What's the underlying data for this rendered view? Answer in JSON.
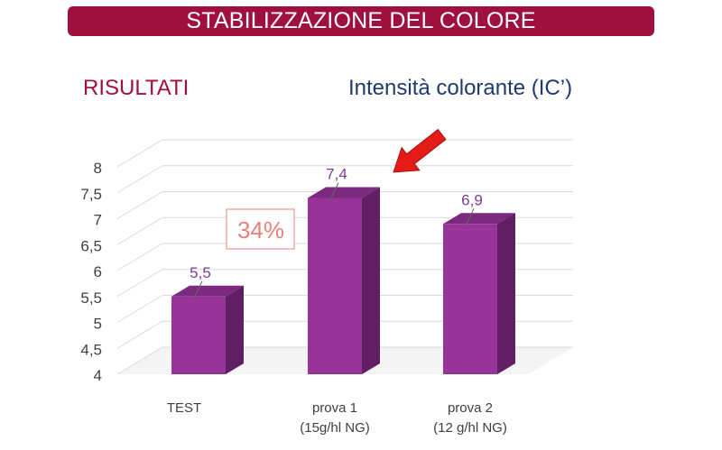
{
  "header": {
    "title": "STABILIZZAZIONE DEL COLORE"
  },
  "section": {
    "label": "RISULTATI"
  },
  "colors": {
    "title_bar": "#a0103e",
    "bar_front": "#983398",
    "bar_top": "#7b2a7f",
    "bar_side": "#5f1f62",
    "data_label": "#7b3a9a",
    "callout": "#e8807a",
    "arrow": "#e41b17"
  },
  "chart_data": {
    "type": "bar",
    "title": "Intensità colorante (IC’)",
    "categories": [
      [
        "TEST"
      ],
      [
        "prova 1",
        "(15g/hl NG)"
      ],
      [
        "prova 2",
        "(12 g/hl NG)"
      ]
    ],
    "values": [
      5.5,
      7.4,
      6.9
    ],
    "data_labels": [
      "5,5",
      "7,4",
      "6,9"
    ],
    "ylim": [
      4,
      8
    ],
    "yticks": [
      "4",
      "4,5",
      "5",
      "5,5",
      "6",
      "6,5",
      "7",
      "7,5",
      "8"
    ],
    "ytick_values": [
      4,
      4.5,
      5,
      5.5,
      6,
      6.5,
      7,
      7.5,
      8
    ],
    "grid": true,
    "three_d": true,
    "annotations": [
      {
        "text": "34%",
        "kind": "callout-box"
      },
      {
        "kind": "arrow",
        "points_to": "prova 1"
      }
    ]
  }
}
